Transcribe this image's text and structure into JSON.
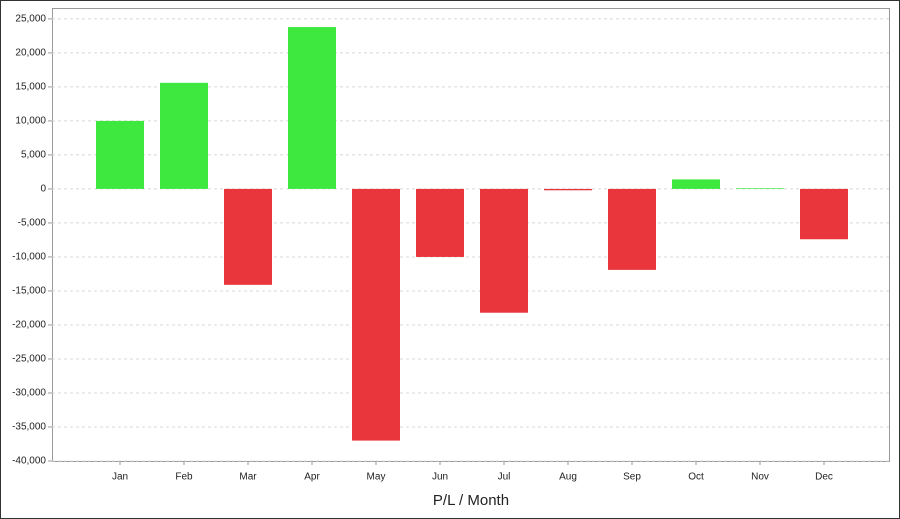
{
  "chart_data": {
    "type": "bar",
    "x_label": "P/L / Month",
    "categories": [
      "Jan",
      "Feb",
      "Mar",
      "Apr",
      "May",
      "Jun",
      "Jul",
      "Aug",
      "Sep",
      "Oct",
      "Nov",
      "Dec"
    ],
    "values": [
      10000,
      15600,
      -14100,
      23800,
      -37000,
      -10000,
      -18200,
      -200,
      -11900,
      1400,
      100,
      -7400
    ],
    "colors": [
      "#3fe83f",
      "#3fe83f",
      "#e8363c",
      "#3fe83f",
      "#e8363c",
      "#e8363c",
      "#e8363c",
      "#e8363c",
      "#e8363c",
      "#3fe83f",
      "#3fe83f",
      "#e8363c"
    ],
    "ylim": [
      -40000,
      26600
    ],
    "yticks": [
      {
        "value": -40000,
        "label": "-40,000"
      },
      {
        "value": -35000,
        "label": "-35,000"
      },
      {
        "value": -30000,
        "label": "-30,000"
      },
      {
        "value": -25000,
        "label": "-25,000"
      },
      {
        "value": -20000,
        "label": "-20,000"
      },
      {
        "value": -15000,
        "label": "-15,000"
      },
      {
        "value": -10000,
        "label": "-10,000"
      },
      {
        "value": -5000,
        "label": "-5,000"
      },
      0,
      {
        "value": 5000,
        "label": "5,000"
      },
      {
        "value": 10000,
        "label": "10,000"
      },
      {
        "value": 15000,
        "label": "15,000"
      },
      {
        "value": 20000,
        "label": "20,000"
      },
      {
        "value": 25000,
        "label": "25,000"
      }
    ],
    "grid": true
  }
}
